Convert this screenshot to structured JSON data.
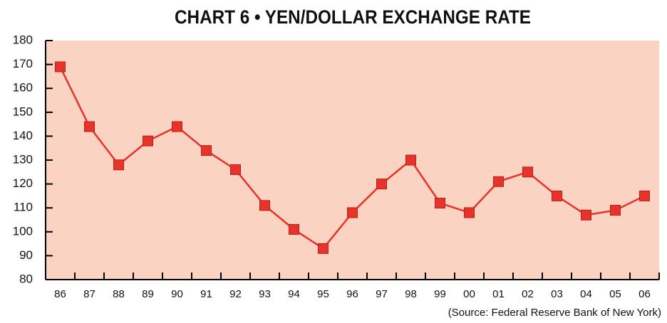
{
  "chart_data": {
    "type": "line",
    "title": "CHART 6 • YEN/DOLLAR EXCHANGE RATE",
    "source": "(Source: Federal Reserve Bank of New York)",
    "categories": [
      "86",
      "87",
      "88",
      "89",
      "90",
      "91",
      "92",
      "93",
      "94",
      "95",
      "96",
      "97",
      "98",
      "99",
      "00",
      "01",
      "02",
      "03",
      "04",
      "05",
      "06"
    ],
    "values": [
      169,
      144,
      128,
      138,
      144,
      134,
      126,
      111,
      101,
      93,
      108,
      120,
      130,
      112,
      108,
      121,
      125,
      115,
      107,
      109,
      115
    ],
    "color": "#e8332a",
    "background": "#fad3c2",
    "ylim": [
      80,
      180
    ],
    "yticks": [
      80,
      90,
      100,
      110,
      120,
      130,
      140,
      150,
      160,
      170,
      180
    ]
  }
}
